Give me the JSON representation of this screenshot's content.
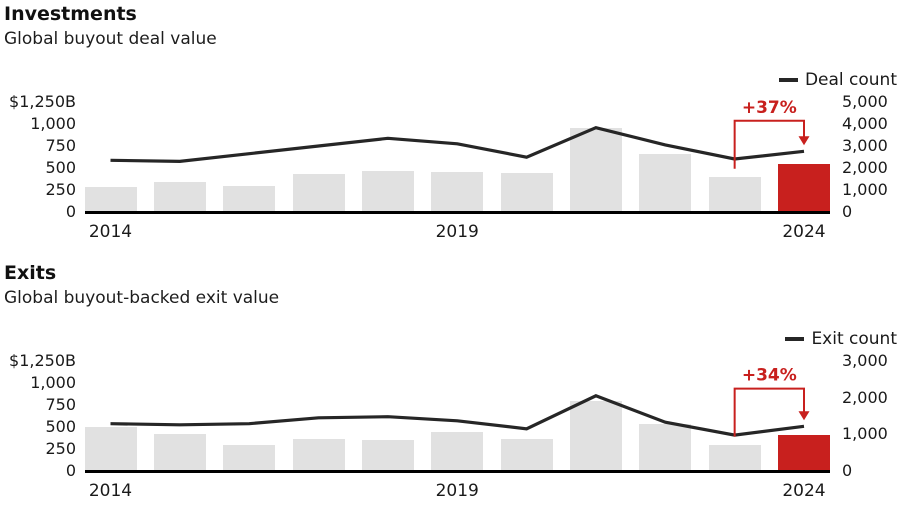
{
  "colors": {
    "bar": "#e1e1e1",
    "highlight": "#c8201e",
    "line": "#262626",
    "axis": "#000000",
    "text": "#1a1a1a",
    "background": "#ffffff"
  },
  "chart_data": [
    {
      "type": "bar+line",
      "title": "Investments",
      "subtitle": "Global buyout deal value",
      "categories": [
        2014,
        2015,
        2016,
        2017,
        2018,
        2019,
        2020,
        2021,
        2022,
        2023,
        2024
      ],
      "bar_series": {
        "name": "Deal value ($B)",
        "values": [
          280,
          345,
          300,
          435,
          470,
          450,
          445,
          950,
          655,
          400,
          548
        ],
        "highlight_index": 10
      },
      "line_series": {
        "name": "Deal count",
        "values": [
          2350,
          2300,
          2650,
          3000,
          3350,
          3100,
          2490,
          3830,
          3050,
          2410,
          2760
        ]
      },
      "ylim_left": [
        0,
        1250
      ],
      "ylim_right": [
        0,
        5000
      ],
      "yticks_left": [
        "$1,250B",
        "1,000",
        "750",
        "500",
        "250",
        "0"
      ],
      "yticks_right": [
        "5,000",
        "4,000",
        "3,000",
        "2,000",
        "1,000",
        "0"
      ],
      "xticks": [
        {
          "label": "2014",
          "index": 0
        },
        {
          "label": "2019",
          "index": 5
        },
        {
          "label": "2024",
          "index": 10
        }
      ],
      "annotation": {
        "label": "+37%",
        "from_index": 9,
        "to_index": 10
      },
      "legend_position": "top-right",
      "grid": false
    },
    {
      "type": "bar+line",
      "title": "Exits",
      "subtitle": "Global buyout-backed exit value",
      "categories": [
        2014,
        2015,
        2016,
        2017,
        2018,
        2019,
        2020,
        2021,
        2022,
        2023,
        2024
      ],
      "bar_series": {
        "name": "Exit value ($B)",
        "values": [
          495,
          420,
          295,
          360,
          350,
          445,
          365,
          800,
          530,
          300,
          405
        ],
        "highlight_index": 10
      },
      "line_series": {
        "name": "Exit count",
        "values": [
          1290,
          1260,
          1290,
          1450,
          1480,
          1370,
          1150,
          2050,
          1330,
          980,
          1220
        ]
      },
      "ylim_left": [
        0,
        1250
      ],
      "ylim_right": [
        0,
        3000
      ],
      "yticks_left": [
        "$1,250B",
        "1,000",
        "750",
        "500",
        "250",
        "0"
      ],
      "yticks_right": [
        "3,000",
        "2,000",
        "1,000",
        "0"
      ],
      "xticks": [
        {
          "label": "2014",
          "index": 0
        },
        {
          "label": "2019",
          "index": 5
        },
        {
          "label": "2024",
          "index": 10
        }
      ],
      "annotation": {
        "label": "+34%",
        "from_index": 9,
        "to_index": 10
      },
      "legend_position": "top-right",
      "grid": false
    }
  ]
}
